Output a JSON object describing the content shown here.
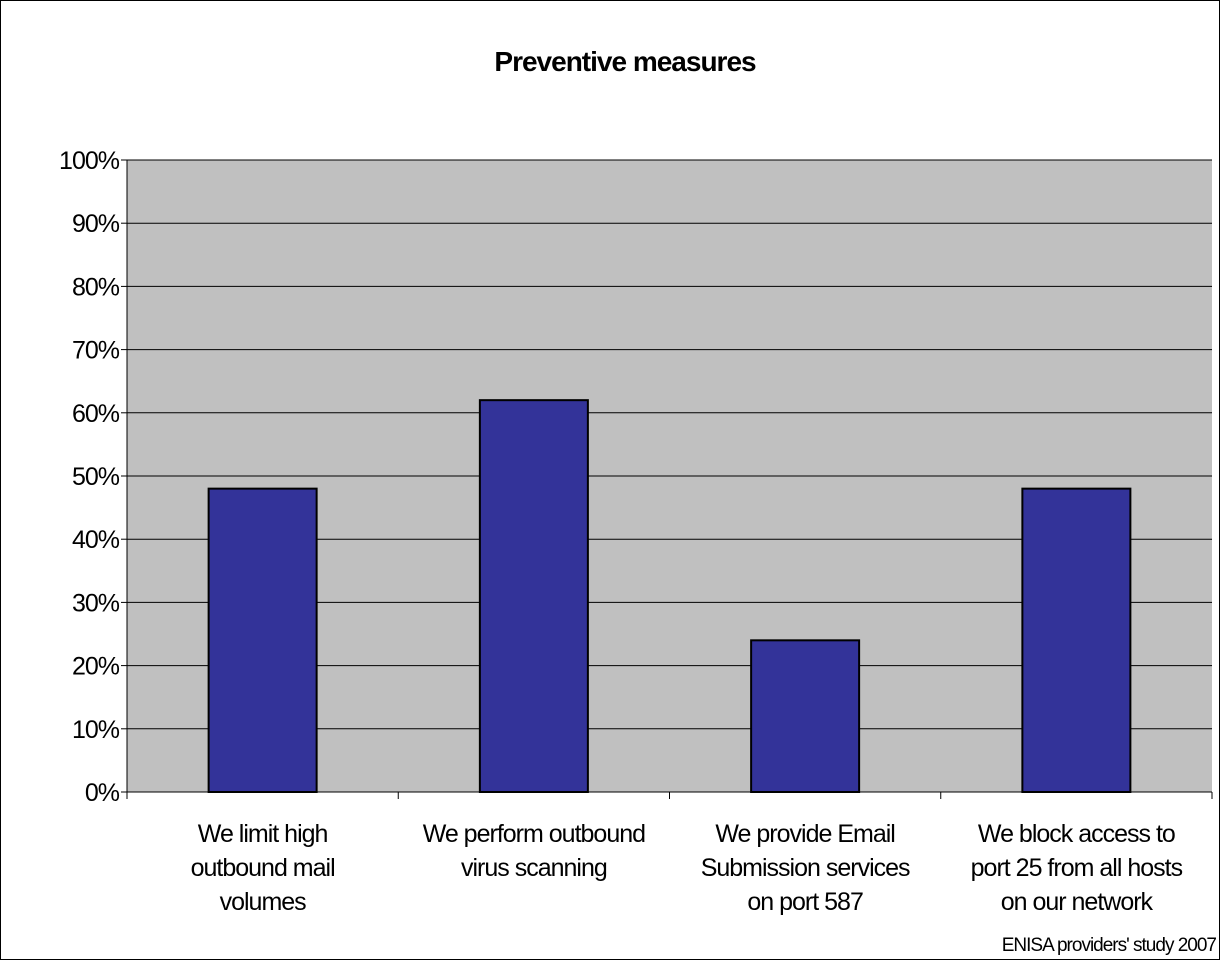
{
  "chart_data": {
    "type": "bar",
    "title": "Preventive measures",
    "categories": [
      [
        "We limit high",
        "outbound mail",
        "volumes"
      ],
      [
        "We perform outbound",
        "virus scanning"
      ],
      [
        "We provide Email",
        "Submission services",
        "on port 587"
      ],
      [
        "We block access to",
        "port 25 from all hosts",
        "on our network"
      ]
    ],
    "values": [
      0.48,
      0.62,
      0.24,
      0.48
    ],
    "ylim": [
      0,
      1
    ],
    "yticks": [
      0,
      0.1,
      0.2,
      0.3,
      0.4,
      0.5,
      0.6,
      0.7,
      0.8,
      0.9,
      1.0
    ],
    "ytick_labels": [
      "0%",
      "10%",
      "20%",
      "30%",
      "40%",
      "50%",
      "60%",
      "70%",
      "80%",
      "90%",
      "100%"
    ],
    "xlabel": "",
    "ylabel": "",
    "grid": true,
    "legend": false,
    "source_note": "ENISA providers' study 2007",
    "colors": {
      "bar_fill": "#333399",
      "plot_background": "#c0c0c0",
      "gridline": "#000000"
    }
  }
}
